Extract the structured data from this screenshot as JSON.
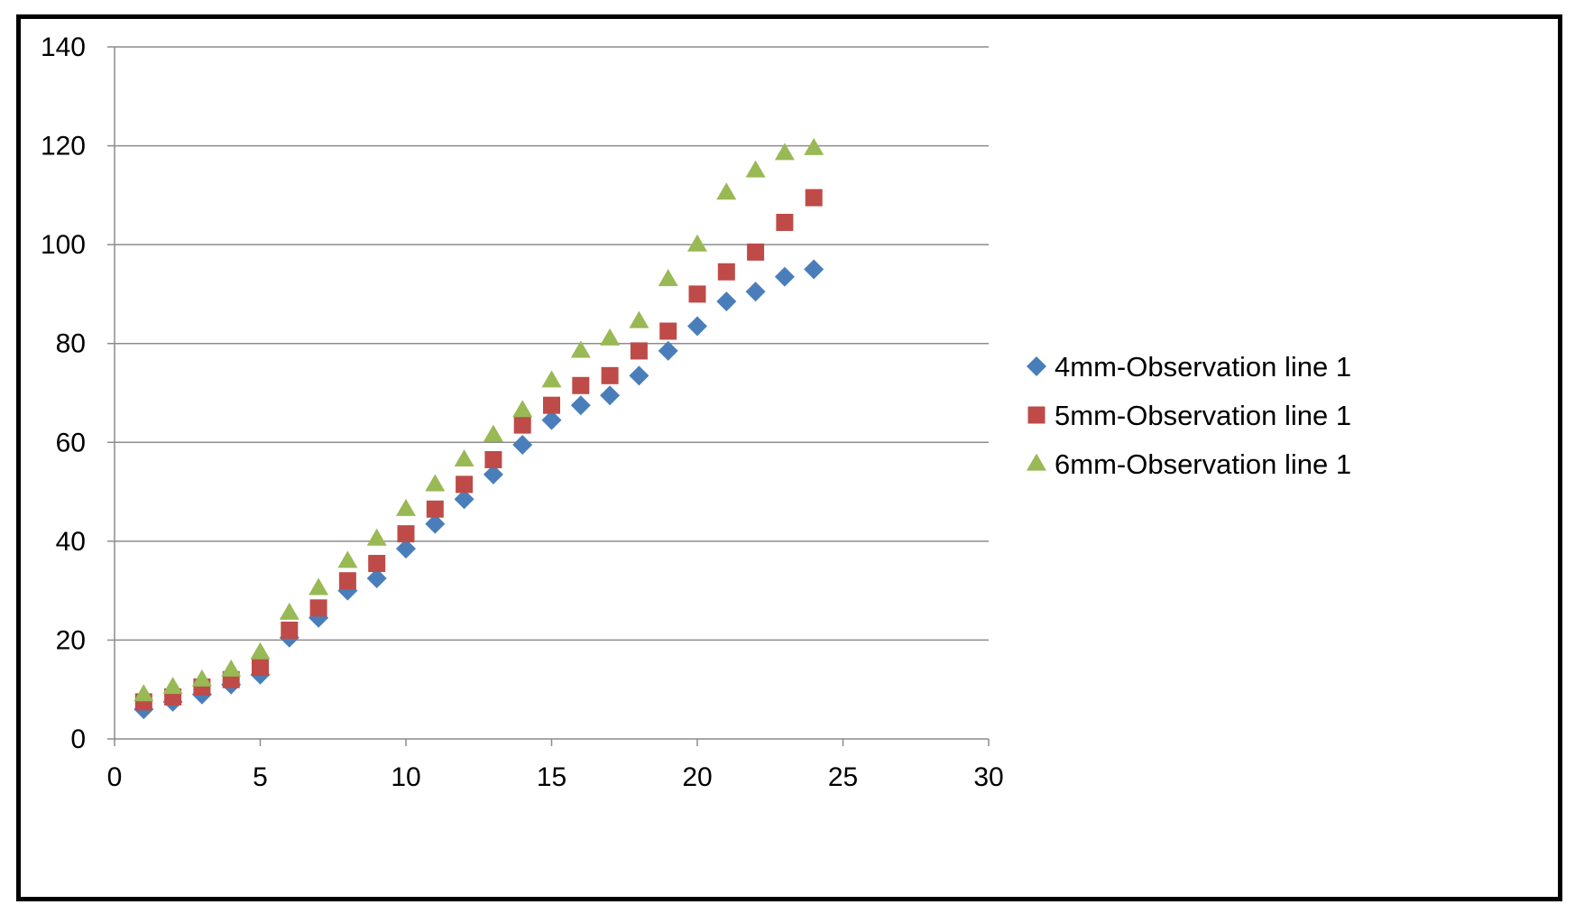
{
  "chart_data": {
    "type": "scatter",
    "title": "",
    "xlabel": "",
    "ylabel": "",
    "xlim": [
      0,
      30
    ],
    "ylim": [
      0,
      140
    ],
    "x_ticks": [
      0,
      5,
      10,
      15,
      20,
      25,
      30
    ],
    "y_ticks": [
      0,
      20,
      40,
      60,
      80,
      100,
      120,
      140
    ],
    "grid": "horizontal",
    "legend_position": "right",
    "x": [
      1,
      2,
      3,
      4,
      5,
      6,
      7,
      8,
      9,
      10,
      11,
      12,
      13,
      14,
      15,
      16,
      17,
      18,
      19,
      20,
      21,
      22,
      23,
      24
    ],
    "series": [
      {
        "name": "4mm-Observation line 1",
        "marker": "diamond",
        "color": "#4a7ebb",
        "values": [
          6,
          7.5,
          9,
          11,
          13,
          20.5,
          24.5,
          30,
          32.5,
          38.5,
          43.5,
          48.5,
          53.5,
          59.5,
          64.5,
          67.5,
          69.5,
          73.5,
          78.5,
          83.5,
          88.5,
          90.5,
          93.5,
          95
        ]
      },
      {
        "name": "5mm-Observation line 1",
        "marker": "square",
        "color": "#be4b48",
        "values": [
          7.5,
          8.5,
          10.5,
          12,
          14.5,
          22,
          26.5,
          32,
          35.5,
          41.5,
          46.5,
          51.5,
          56.5,
          63.5,
          67.5,
          71.5,
          73.5,
          78.5,
          82.5,
          90,
          94.5,
          98.5,
          104.5,
          109.5
        ]
      },
      {
        "name": "6mm-Observation line 1",
        "marker": "triangle",
        "color": "#98b954",
        "values": [
          9,
          10.5,
          12,
          14,
          17.5,
          25.5,
          30.5,
          36,
          40.5,
          46.5,
          51.5,
          56.5,
          61.5,
          66.5,
          72.5,
          78.5,
          81,
          84.5,
          93,
          100,
          110.5,
          115,
          118.5,
          119.5
        ]
      }
    ]
  }
}
